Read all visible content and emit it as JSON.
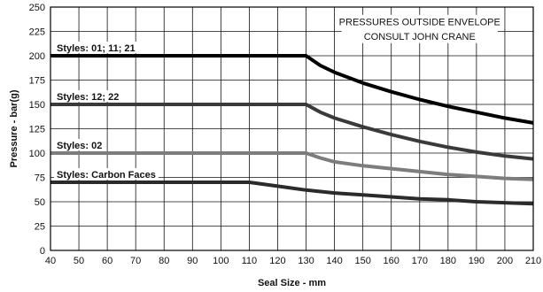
{
  "chart_data": {
    "type": "line",
    "xlabel": "Seal Size - mm",
    "ylabel": "Pressure - bar(g)",
    "xlim": [
      40,
      210
    ],
    "ylim": [
      0,
      250
    ],
    "x_ticks": [
      40,
      50,
      60,
      70,
      80,
      90,
      100,
      110,
      120,
      130,
      140,
      150,
      160,
      170,
      180,
      190,
      200,
      210
    ],
    "y_ticks": [
      0,
      25,
      50,
      75,
      100,
      125,
      150,
      175,
      200,
      225,
      250
    ],
    "grid": true,
    "annotation": [
      "PRESSURES OUTSIDE ENVELOPE",
      "CONSULT JOHN CRANE"
    ],
    "series": [
      {
        "name": "Styles: 01; 11; 21",
        "color": "#000000",
        "points": [
          [
            40,
            200
          ],
          [
            130,
            200
          ],
          [
            135,
            190
          ],
          [
            140,
            183
          ],
          [
            150,
            172
          ],
          [
            160,
            163
          ],
          [
            170,
            155
          ],
          [
            180,
            148
          ],
          [
            190,
            142
          ],
          [
            200,
            136
          ],
          [
            210,
            131
          ]
        ]
      },
      {
        "name": "Styles: 12; 22",
        "color": "#3a3a3a",
        "points": [
          [
            40,
            150
          ],
          [
            130,
            150
          ],
          [
            135,
            142
          ],
          [
            140,
            136
          ],
          [
            150,
            127
          ],
          [
            160,
            119
          ],
          [
            170,
            112
          ],
          [
            180,
            106
          ],
          [
            190,
            101
          ],
          [
            200,
            97
          ],
          [
            210,
            94
          ]
        ]
      },
      {
        "name": "Styles: 02",
        "color": "#7d7d7d",
        "points": [
          [
            40,
            100
          ],
          [
            130,
            100
          ],
          [
            135,
            95
          ],
          [
            140,
            91
          ],
          [
            150,
            87
          ],
          [
            160,
            84
          ],
          [
            170,
            81
          ],
          [
            180,
            78
          ],
          [
            190,
            76
          ],
          [
            200,
            74
          ],
          [
            210,
            73
          ]
        ]
      },
      {
        "name": "Styles: Carbon Faces",
        "color": "#2b2b2b",
        "points": [
          [
            40,
            70
          ],
          [
            110,
            70
          ],
          [
            120,
            66
          ],
          [
            130,
            62
          ],
          [
            140,
            59
          ],
          [
            150,
            57
          ],
          [
            160,
            55
          ],
          [
            170,
            53
          ],
          [
            180,
            52
          ],
          [
            190,
            50
          ],
          [
            200,
            49
          ],
          [
            210,
            48
          ]
        ]
      }
    ]
  }
}
